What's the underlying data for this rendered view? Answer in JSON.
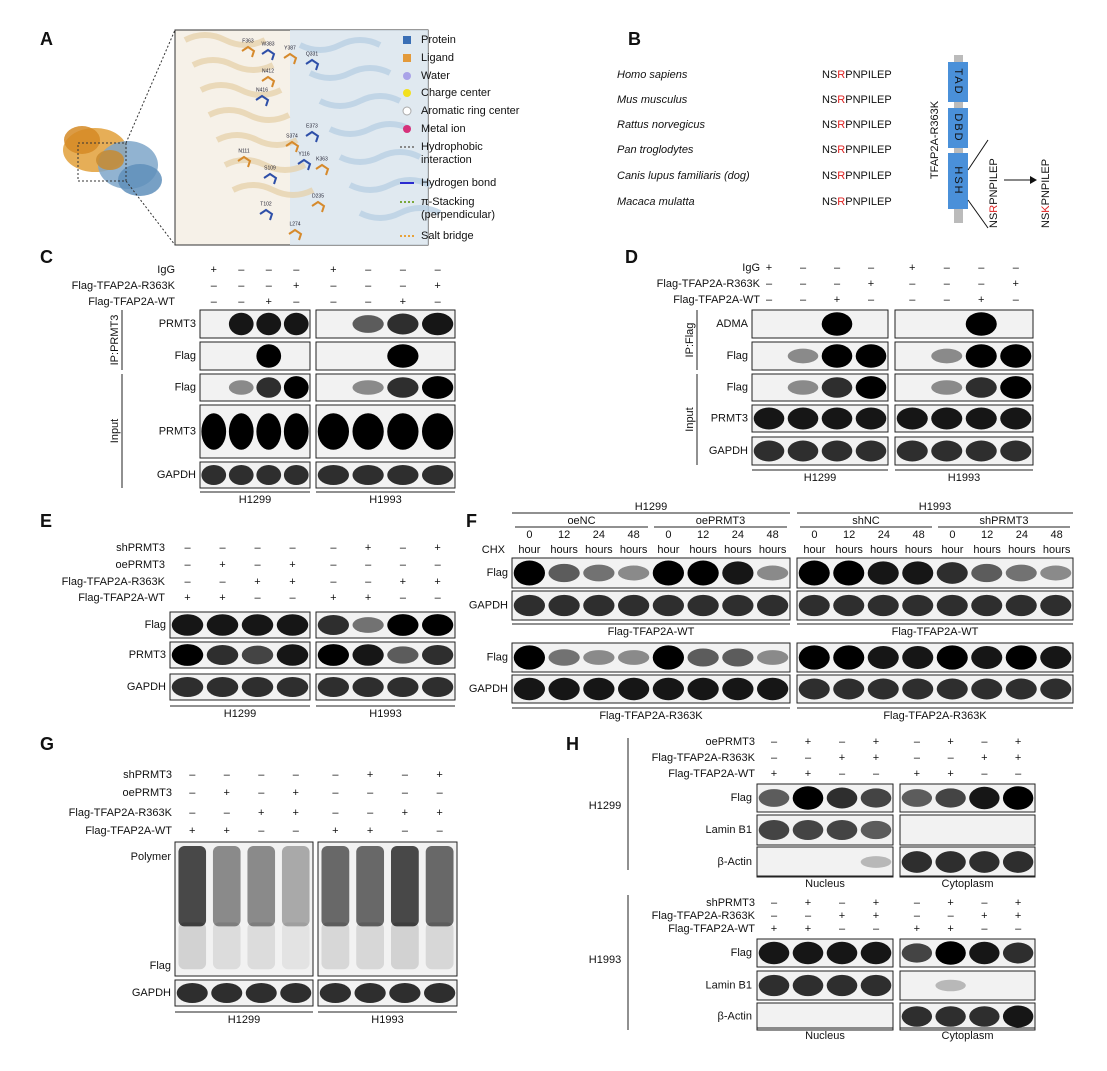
{
  "panels": {
    "A": {
      "label": "A",
      "residues": [
        "F363",
        "W383",
        "Y387",
        "Q331",
        "N412",
        "N416",
        "S374",
        "E373",
        "N111",
        "Y116",
        "K363",
        "S109",
        "D235",
        "T102",
        "L274"
      ],
      "legend": [
        [
          "Protein"
        ],
        [
          "Ligand"
        ],
        [
          "Water"
        ],
        [
          "Charge center"
        ],
        [
          "Aromatic ring center"
        ],
        [
          "Metal ion"
        ],
        [
          "Hydrophobic",
          "interaction"
        ],
        [
          "Hydrogen bond"
        ],
        [
          "π-Stacking",
          "(perpendicular)"
        ],
        [
          "Salt bridge"
        ]
      ]
    },
    "B": {
      "label": "B",
      "species": [
        "Homo sapiens",
        "Mus musculus",
        "Rattus norvegicus",
        "Pan troglodytes",
        "Canis lupus familiaris (dog)",
        "Macaca mulatta"
      ],
      "sequences": [
        [
          "NS",
          "R",
          "PNPILEP"
        ],
        [
          "NS",
          "R",
          "PNPILEP"
        ],
        [
          "NS",
          "R",
          "PNPILEP"
        ],
        [
          "NS",
          "R",
          "PNPILEP"
        ],
        [
          "NS",
          "R",
          "PNPILEP"
        ],
        [
          "NS",
          "R",
          "PNPILEP"
        ]
      ],
      "protein": "TFAP2A-R363K",
      "domains": [
        "TAD",
        "DBD",
        "HSH"
      ],
      "domain_sequence": [
        "NS",
        "R",
        "PNPILEP"
      ],
      "mutant_sequence": [
        "NS",
        "K",
        "PNPILEP"
      ]
    },
    "C": {
      "label": "C",
      "conditions": [
        {
          "name": "IgG",
          "signs": [
            "+",
            "–",
            "–",
            "–",
            "+",
            "–",
            "–",
            "–"
          ]
        },
        {
          "name": "Flag-TFAP2A-R363K",
          "signs": [
            "–",
            "–",
            "–",
            "+",
            "–",
            "–",
            "–",
            "+"
          ]
        },
        {
          "name": "Flag-TFAP2A-WT",
          "signs": [
            "–",
            "–",
            "+",
            "–",
            "–",
            "–",
            "+",
            "–"
          ]
        }
      ],
      "blots": [
        "PRMT3",
        "Flag",
        "Flag",
        "PRMT3",
        "GAPDH"
      ],
      "brackets": [
        "IP:PRMT3",
        "Input"
      ],
      "groups": [
        "H1299",
        "H1993"
      ]
    },
    "D": {
      "label": "D",
      "conditions": [
        {
          "name": "IgG",
          "signs": [
            "+",
            "–",
            "–",
            "–",
            "+",
            "–",
            "–",
            "–"
          ]
        },
        {
          "name": "Flag-TFAP2A-R363K",
          "signs": [
            "–",
            "–",
            "–",
            "+",
            "–",
            "–",
            "–",
            "+"
          ]
        },
        {
          "name": "Flag-TFAP2A-WT",
          "signs": [
            "–",
            "–",
            "+",
            "–",
            "–",
            "–",
            "+",
            "–"
          ]
        }
      ],
      "blots": [
        "ADMA",
        "Flag",
        "Flag",
        "PRMT3",
        "GAPDH"
      ],
      "brackets": [
        "IP:Flag",
        "Input"
      ],
      "groups": [
        "H1299",
        "H1993"
      ]
    },
    "E": {
      "label": "E",
      "conditions": [
        {
          "name": "shPRMT3",
          "signs": [
            "–",
            "–",
            "–",
            "–",
            "–",
            "+",
            "–",
            "+"
          ]
        },
        {
          "name": "oePRMT3",
          "signs": [
            "–",
            "+",
            "–",
            "+",
            "–",
            "–",
            "–",
            "–"
          ]
        },
        {
          "name": "Flag-TFAP2A-R363K",
          "signs": [
            "–",
            "–",
            "+",
            "+",
            "–",
            "–",
            "+",
            "+"
          ]
        },
        {
          "name": "Flag-TFAP2A-WT",
          "signs": [
            "+",
            "+",
            "–",
            "–",
            "+",
            "+",
            "–",
            "–"
          ]
        }
      ],
      "blots": [
        "Flag",
        "PRMT3",
        "GAPDH"
      ],
      "brackets": [],
      "groups": [
        "H1299",
        "H1993"
      ]
    },
    "F": {
      "label": "F",
      "cells": [
        "H1299",
        "H1993"
      ],
      "treatments": [
        "oeNC",
        "oePRMT3",
        "shNC",
        "shPRMT3"
      ],
      "time_numbers": [
        "0",
        "12",
        "24",
        "48"
      ],
      "time_units": [
        "hour",
        "hours",
        "hours",
        "hours"
      ],
      "chx": "CHX",
      "sets": [
        {
          "blots": [
            "Flag",
            "GAPDH"
          ],
          "captions": [
            "Flag-TFAP2A-WT",
            "Flag-TFAP2A-WT"
          ]
        },
        {
          "blots": [
            "Flag",
            "GAPDH"
          ],
          "captions": [
            "Flag-TFAP2A-R363K",
            "Flag-TFAP2A-R363K"
          ]
        }
      ]
    },
    "G": {
      "label": "G",
      "conditions": [
        {
          "name": "shPRMT3",
          "signs": [
            "–",
            "–",
            "–",
            "–",
            "–",
            "+",
            "–",
            "+"
          ]
        },
        {
          "name": "oePRMT3",
          "signs": [
            "–",
            "+",
            "–",
            "+",
            "–",
            "–",
            "–",
            "–"
          ]
        },
        {
          "name": "Flag-TFAP2A-R363K",
          "signs": [
            "–",
            "–",
            "+",
            "+",
            "–",
            "–",
            "+",
            "+"
          ]
        },
        {
          "name": "Flag-TFAP2A-WT",
          "signs": [
            "+",
            "+",
            "–",
            "–",
            "+",
            "+",
            "–",
            "–"
          ]
        }
      ],
      "blots": [
        "Polymer",
        "Flag",
        "GAPDH"
      ],
      "brackets": [],
      "groups": [
        "H1299",
        "H1993"
      ]
    },
    "H": {
      "label": "H",
      "sets": [
        {
          "cell": "H1299",
          "conditions": [
            {
              "name": "oePRMT3",
              "signs": [
                "–",
                "+",
                "–",
                "+",
                "–",
                "+",
                "–",
                "+"
              ]
            },
            {
              "name": "Flag-TFAP2A-R363K",
              "signs": [
                "–",
                "–",
                "+",
                "+",
                "–",
                "–",
                "+",
                "+"
              ]
            },
            {
              "name": "Flag-TFAP2A-WT",
              "signs": [
                "+",
                "+",
                "–",
                "–",
                "+",
                "+",
                "–",
                "–"
              ]
            }
          ],
          "blots": [
            "Flag",
            "Lamin B1",
            "β-Actin"
          ],
          "brackets": [],
          "groups": [
            "Nucleus",
            "Cytoplasm"
          ]
        },
        {
          "cell": "H1993",
          "conditions": [
            {
              "name": "shPRMT3",
              "signs": [
                "–",
                "+",
                "–",
                "+",
                "–",
                "+",
                "–",
                "+"
              ]
            },
            {
              "name": "Flag-TFAP2A-R363K",
              "signs": [
                "–",
                "–",
                "+",
                "+",
                "–",
                "–",
                "+",
                "+"
              ]
            },
            {
              "name": "Flag-TFAP2A-WT",
              "signs": [
                "+",
                "+",
                "–",
                "–",
                "+",
                "+",
                "–",
                "–"
              ]
            }
          ],
          "blots": [
            "Flag",
            "Lamin B1",
            "β-Actin"
          ],
          "brackets": [],
          "groups": [
            "Nucleus",
            "Cytoplasm"
          ]
        }
      ]
    }
  }
}
